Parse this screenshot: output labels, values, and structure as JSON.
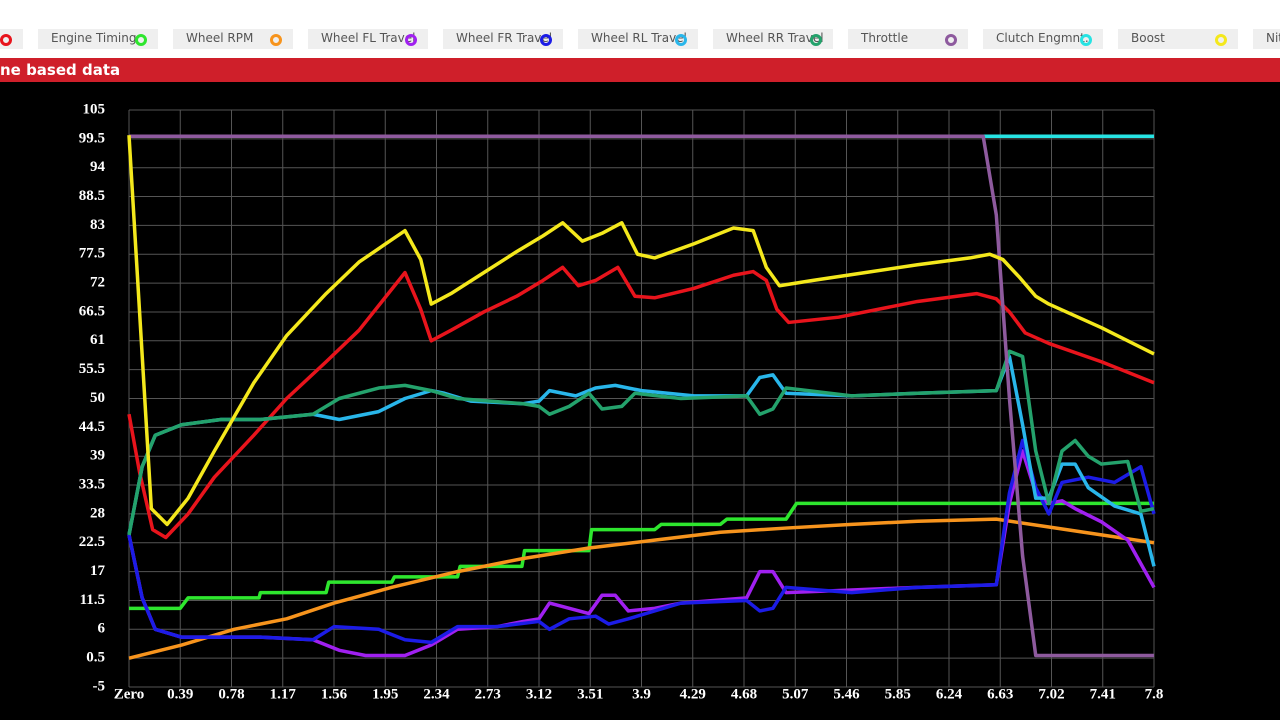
{
  "legend_cutoff": "Nit",
  "chart_data": {
    "type": "line",
    "title": "ne based data",
    "grid": true,
    "xlim": [
      0,
      7.8
    ],
    "ylim": [
      -5,
      105
    ],
    "xticks": [
      {
        "value": 0,
        "label": "Zero"
      },
      0.39,
      0.78,
      1.17,
      1.56,
      1.95,
      2.34,
      2.73,
      3.12,
      3.51,
      3.9,
      4.29,
      4.68,
      5.07,
      5.46,
      5.85,
      6.24,
      6.63,
      7.02,
      7.41,
      7.8
    ],
    "yticks": [
      -5,
      0.5,
      6,
      11.5,
      17,
      22.5,
      28,
      33.5,
      39,
      44.5,
      50,
      55.5,
      61,
      66.5,
      72,
      77.5,
      83,
      88.5,
      94,
      99.5,
      105
    ],
    "series": [
      {
        "color": "#e8141c",
        "x": [
          0,
          0.08,
          0.18,
          0.28,
          0.45,
          0.65,
          0.95,
          1.2,
          1.5,
          1.75,
          2.1,
          2.22,
          2.3,
          2.45,
          2.7,
          2.95,
          3.15,
          3.3,
          3.42,
          3.55,
          3.72,
          3.85,
          4.0,
          4.3,
          4.6,
          4.75,
          4.85,
          4.93,
          5.02,
          5.4,
          6.0,
          6.45,
          6.6,
          6.7,
          6.82,
          7.0,
          7.4,
          7.8
        ],
        "values": [
          47,
          36,
          25,
          23.5,
          28,
          35,
          43,
          50,
          57,
          63,
          74,
          67,
          61,
          63,
          66.5,
          69.5,
          72.5,
          75,
          71.5,
          72.5,
          75,
          69.5,
          69.2,
          71,
          73.5,
          74.2,
          72.5,
          67,
          64.5,
          65.5,
          68.5,
          70,
          69,
          66.5,
          62.5,
          60.5,
          57,
          53
        ]
      },
      {
        "name": "Engine Timing",
        "color": "#2ee62e",
        "x": [
          0,
          0.39,
          0.45,
          0.99,
          1.0,
          1.5,
          1.52,
          2.0,
          2.02,
          2.5,
          2.52,
          2.99,
          3.01,
          3.5,
          3.52,
          4.0,
          4.05,
          4.5,
          4.55,
          5.0,
          5.08,
          6.6,
          7.8
        ],
        "values": [
          10,
          10,
          12,
          12,
          13,
          13,
          15,
          15,
          16,
          16,
          18,
          18,
          21,
          21,
          25,
          25,
          26,
          26,
          27,
          27,
          30,
          30,
          30
        ]
      },
      {
        "name": "Wheel RPM",
        "color": "#f7941d",
        "x": [
          0,
          0.4,
          0.8,
          1.2,
          1.56,
          2.0,
          2.5,
          3.0,
          3.5,
          4.0,
          4.5,
          5.0,
          5.5,
          6.0,
          6.6,
          7.0,
          7.4,
          7.8
        ],
        "values": [
          0.5,
          3,
          6,
          8,
          11,
          14,
          17,
          19.5,
          21.5,
          23,
          24.5,
          25.3,
          26,
          26.6,
          27,
          25.5,
          24,
          22.5
        ]
      },
      {
        "name": "Wheel FL Travel",
        "color": "#a020f0",
        "x": [
          0,
          0.1,
          0.2,
          0.4,
          1.0,
          1.4,
          1.6,
          1.8,
          2.1,
          2.3,
          2.5,
          2.8,
          3.0,
          3.12,
          3.2,
          3.35,
          3.5,
          3.6,
          3.7,
          3.8,
          4.0,
          4.2,
          4.7,
          4.8,
          4.9,
          5.0,
          5.5,
          6.0,
          6.6,
          6.7,
          6.8,
          6.9,
          7.0,
          7.1,
          7.2,
          7.4,
          7.6,
          7.8
        ],
        "values": [
          24,
          12,
          6,
          4.5,
          4.5,
          4,
          2,
          1,
          1,
          3,
          6,
          6.5,
          7.5,
          8,
          11,
          10,
          9,
          12.5,
          12.5,
          9.5,
          10,
          11,
          12,
          17,
          17,
          13,
          13.5,
          14,
          14.5,
          30,
          40,
          32,
          30,
          30.5,
          29,
          26.5,
          23,
          14
        ]
      },
      {
        "name": "Wheel FR Travel",
        "color": "#1c1ce6",
        "x": [
          0,
          0.1,
          0.2,
          0.4,
          1.0,
          1.4,
          1.56,
          1.9,
          2.1,
          2.3,
          2.5,
          2.8,
          3.12,
          3.2,
          3.35,
          3.55,
          3.65,
          3.8,
          4.2,
          4.7,
          4.8,
          4.9,
          5.0,
          5.5,
          6.0,
          6.6,
          6.7,
          6.8,
          6.9,
          7.0,
          7.1,
          7.3,
          7.5,
          7.7,
          7.8
        ],
        "values": [
          24,
          12,
          6,
          4.5,
          4.5,
          4,
          6.5,
          6,
          4,
          3.5,
          6.5,
          6.5,
          7.5,
          6,
          8,
          8.5,
          7,
          8,
          11,
          11.5,
          9.5,
          10,
          14,
          13,
          14,
          14.5,
          32,
          42,
          33,
          28,
          34,
          35,
          34,
          37,
          28
        ]
      },
      {
        "name": "Wheel RL Travel",
        "color": "#29b6ea",
        "x": [
          0,
          0.1,
          0.2,
          0.4,
          0.7,
          1.0,
          1.4,
          1.6,
          1.9,
          2.1,
          2.3,
          2.4,
          2.6,
          3.0,
          3.12,
          3.2,
          3.4,
          3.55,
          3.7,
          3.9,
          4.3,
          4.7,
          4.8,
          4.9,
          5.0,
          5.5,
          6.0,
          6.6,
          6.7,
          6.8,
          6.9,
          7.0,
          7.1,
          7.2,
          7.3,
          7.5,
          7.7,
          7.8
        ],
        "values": [
          24,
          37,
          43,
          45,
          46,
          46,
          47,
          46,
          47.5,
          50,
          51.5,
          51,
          49.5,
          49,
          49.5,
          51.5,
          50.5,
          52,
          52.5,
          51.5,
          50.5,
          50.5,
          54,
          54.5,
          51,
          50.5,
          51,
          51.5,
          58,
          45,
          31,
          31,
          37.5,
          37.5,
          33,
          29.5,
          28,
          18
        ]
      },
      {
        "name": "Wheel RR Travel",
        "color": "#24a26c",
        "x": [
          0,
          0.1,
          0.2,
          0.4,
          0.7,
          1.0,
          1.4,
          1.6,
          1.9,
          2.1,
          2.3,
          2.5,
          3.0,
          3.12,
          3.2,
          3.35,
          3.5,
          3.6,
          3.75,
          3.85,
          4.2,
          4.7,
          4.8,
          4.9,
          5.0,
          5.5,
          6.0,
          6.6,
          6.7,
          6.8,
          6.9,
          7.0,
          7.1,
          7.2,
          7.3,
          7.4,
          7.6,
          7.7,
          7.8
        ],
        "values": [
          24,
          37,
          43,
          45,
          46,
          46,
          47,
          50,
          52,
          52.5,
          51.5,
          50,
          49,
          48.5,
          47,
          48.5,
          51,
          48,
          48.5,
          51,
          50,
          50.5,
          47,
          48,
          52,
          50.5,
          51,
          51.5,
          59,
          58,
          40,
          30,
          40,
          42,
          39,
          37.5,
          38,
          28.5,
          29
        ]
      },
      {
        "name": "Throttle",
        "color": "#8e5a9e",
        "x": [
          0,
          6.5,
          6.6,
          6.7,
          6.8,
          6.9,
          7.8
        ],
        "values": [
          100,
          100,
          85,
          50,
          20,
          1,
          1
        ]
      },
      {
        "name": "Clutch Engmnt.",
        "color": "#27e3e3",
        "x": [
          0,
          7.8
        ],
        "values": [
          100,
          100
        ]
      },
      {
        "name": "Boost",
        "color": "#f4e81c",
        "x": [
          0,
          0.17,
          0.29,
          0.45,
          0.65,
          0.95,
          1.2,
          1.5,
          1.75,
          2.1,
          2.22,
          2.3,
          2.45,
          2.7,
          2.95,
          3.15,
          3.3,
          3.45,
          3.6,
          3.75,
          3.87,
          4.0,
          4.3,
          4.6,
          4.75,
          4.85,
          4.95,
          5.2,
          5.6,
          6.0,
          6.4,
          6.55,
          6.65,
          6.78,
          6.9,
          7.0,
          7.4,
          7.8
        ],
        "values": [
          100.2,
          29,
          26,
          31,
          40,
          53,
          62,
          70,
          76,
          82,
          76.5,
          68,
          70,
          74,
          78,
          81,
          83.5,
          80,
          81.5,
          83.5,
          77.5,
          76.8,
          79.5,
          82.5,
          82,
          75,
          71.5,
          72.5,
          74,
          75.5,
          76.8,
          77.5,
          76.5,
          73,
          69.5,
          68,
          63.5,
          58.5
        ]
      }
    ]
  }
}
